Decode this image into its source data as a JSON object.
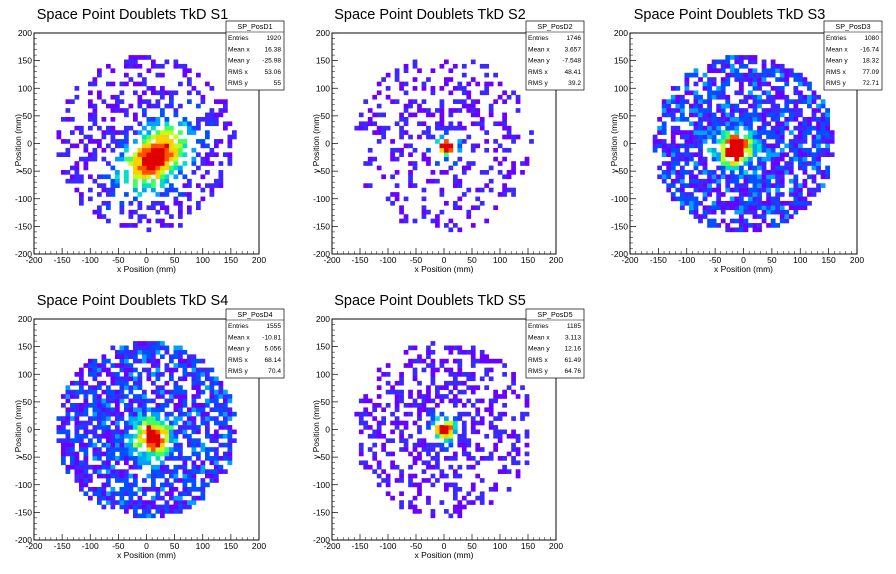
{
  "chart_data": [
    {
      "type": "heatmap",
      "title": "Space Point Doublets TkD S1",
      "xlabel": "x Position (mm)",
      "ylabel": "y Position (mm)",
      "xlim": [
        -200,
        200
      ],
      "ylim": [
        -200,
        200
      ],
      "xticks": [
        "-200",
        "-150",
        "-100",
        "-50",
        "0",
        "50",
        "100",
        "150",
        "200"
      ],
      "yticks": [
        "-200",
        "-150",
        "-100",
        "-50",
        "0",
        "50",
        "100",
        "150",
        "200"
      ],
      "stats": {
        "name": "SP_PosD1",
        "rows": [
          {
            "label": "Entries",
            "value": "1920"
          },
          {
            "label": "Mean x",
            "value": "16.38"
          },
          {
            "label": "Mean y",
            "value": "-25.98"
          },
          {
            "label": "RMS x",
            "value": "53.06"
          },
          {
            "label": "RMS y",
            "value": "55"
          }
        ]
      },
      "hotspot": {
        "x": 15,
        "y": -25
      },
      "spread": 30,
      "fill_radius": 160,
      "pattern": "diagonal-band",
      "occupancy": 0.45
    },
    {
      "type": "heatmap",
      "title": "Space Point Doublets TkD S2",
      "xlabel": "x Position (mm)",
      "ylabel": "y Position (mm)",
      "xlim": [
        -200,
        200
      ],
      "ylim": [
        -200,
        200
      ],
      "xticks": [
        "-200",
        "-150",
        "-100",
        "-50",
        "0",
        "50",
        "100",
        "150",
        "200"
      ],
      "yticks": [
        "-200",
        "-150",
        "-100",
        "-50",
        "0",
        "50",
        "100",
        "150",
        "200"
      ],
      "stats": {
        "name": "SP_PosD2",
        "rows": [
          {
            "label": "Entries",
            "value": "1746"
          },
          {
            "label": "Mean x",
            "value": "3.657"
          },
          {
            "label": "Mean y",
            "value": "-7.548"
          },
          {
            "label": "RMS x",
            "value": "48.41"
          },
          {
            "label": "RMS y",
            "value": "39.2"
          }
        ]
      },
      "hotspot": {
        "x": 5,
        "y": -5
      },
      "spread": 14,
      "fill_radius": 160,
      "pattern": "central",
      "occupancy": 0.35
    },
    {
      "type": "heatmap",
      "title": "Space Point Doublets TkD S3",
      "xlabel": "x Position (mm)",
      "ylabel": "y Position (mm)",
      "xlim": [
        -200,
        200
      ],
      "ylim": [
        -200,
        200
      ],
      "xticks": [
        "-200",
        "-150",
        "-100",
        "-50",
        "0",
        "50",
        "100",
        "150",
        "200"
      ],
      "yticks": [
        "-200",
        "-150",
        "-100",
        "-50",
        "0",
        "50",
        "100",
        "150",
        "200"
      ],
      "stats": {
        "name": "SP_PosD3",
        "rows": [
          {
            "label": "Entries",
            "value": "1080"
          },
          {
            "label": "Mean x",
            "value": "-16.74"
          },
          {
            "label": "Mean y",
            "value": "18.32"
          },
          {
            "label": "RMS x",
            "value": "77.09"
          },
          {
            "label": "RMS y",
            "value": "72.71"
          }
        ]
      },
      "hotspot": {
        "x": -15,
        "y": -10
      },
      "spread": 22,
      "fill_radius": 160,
      "pattern": "uniform",
      "occupancy": 0.7
    },
    {
      "type": "heatmap",
      "title": "Space Point Doublets TkD S4",
      "xlabel": "x Position (mm)",
      "ylabel": "y Position (mm)",
      "xlim": [
        -200,
        200
      ],
      "ylim": [
        -200,
        200
      ],
      "xticks": [
        "-200",
        "-150",
        "-100",
        "-50",
        "0",
        "50",
        "100",
        "150",
        "200"
      ],
      "yticks": [
        "-200",
        "-150",
        "-100",
        "-50",
        "0",
        "50",
        "100",
        "150",
        "200"
      ],
      "stats": {
        "name": "SP_PosD4",
        "rows": [
          {
            "label": "Entries",
            "value": "1555"
          },
          {
            "label": "Mean x",
            "value": "-10.81"
          },
          {
            "label": "Mean y",
            "value": "5.056"
          },
          {
            "label": "RMS x",
            "value": "68.14"
          },
          {
            "label": "RMS y",
            "value": "70.4"
          }
        ]
      },
      "hotspot": {
        "x": 10,
        "y": -15
      },
      "spread": 22,
      "fill_radius": 160,
      "pattern": "uniform",
      "occupancy": 0.7
    },
    {
      "type": "heatmap",
      "title": "Space Point Doublets TkD S5",
      "xlabel": "x Position (mm)",
      "ylabel": "y Position (mm)",
      "xlim": [
        -200,
        200
      ],
      "ylim": [
        -200,
        200
      ],
      "xticks": [
        "-200",
        "-150",
        "-100",
        "-50",
        "0",
        "50",
        "100",
        "150",
        "200"
      ],
      "yticks": [
        "-200",
        "-150",
        "-100",
        "-50",
        "0",
        "50",
        "100",
        "150",
        "200"
      ],
      "stats": {
        "name": "SP_PosD5",
        "rows": [
          {
            "label": "Entries",
            "value": "1185"
          },
          {
            "label": "Mean x",
            "value": "3.113"
          },
          {
            "label": "Mean y",
            "value": "12.16"
          },
          {
            "label": "RMS x",
            "value": "61.49"
          },
          {
            "label": "RMS y",
            "value": "64.76"
          }
        ]
      },
      "hotspot": {
        "x": 0,
        "y": 0
      },
      "spread": 14,
      "fill_radius": 160,
      "pattern": "central",
      "occupancy": 0.5
    }
  ],
  "colors": {
    "background": "#ffffff",
    "axis": "#000000",
    "palette": [
      "#6a00ff",
      "#3c28ff",
      "#0050ff",
      "#00a0ff",
      "#00e0c8",
      "#40ff60",
      "#c0ff20",
      "#ffd000",
      "#ff5000",
      "#e00000"
    ]
  }
}
